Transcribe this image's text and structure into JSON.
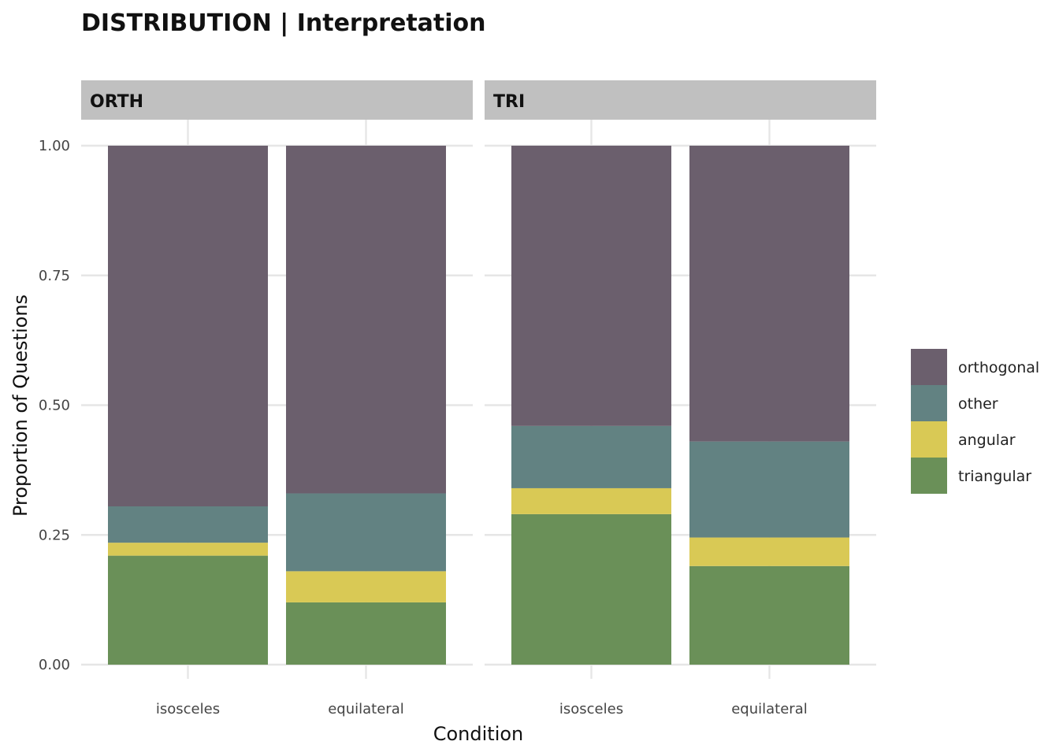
{
  "chart_data": {
    "type": "bar",
    "stacked": true,
    "title": "DISTRIBUTION | Interpretation",
    "xlabel": "Condition",
    "ylabel": "Proportion of Questions",
    "ylim": [
      0,
      1
    ],
    "yticks": [
      "0.00",
      "0.25",
      "0.50",
      "0.75",
      "1.00"
    ],
    "grid": true,
    "legend_position": "right",
    "categories": [
      "isosceles",
      "equilateral"
    ],
    "stack_order": [
      "triangular",
      "angular",
      "other",
      "orthogonal"
    ],
    "colors": {
      "orthogonal": "#6b5f6d",
      "other": "#628282",
      "angular": "#d9c955",
      "triangular": "#6a9058"
    },
    "legend": [
      "orthogonal",
      "other",
      "angular",
      "triangular"
    ],
    "facets": [
      {
        "name": "ORTH",
        "series": [
          {
            "name": "triangular",
            "values": [
              0.21,
              0.12
            ]
          },
          {
            "name": "angular",
            "values": [
              0.025,
              0.06
            ]
          },
          {
            "name": "other",
            "values": [
              0.07,
              0.15
            ]
          },
          {
            "name": "orthogonal",
            "values": [
              0.695,
              0.67
            ]
          }
        ]
      },
      {
        "name": "TRI",
        "series": [
          {
            "name": "triangular",
            "values": [
              0.29,
              0.19
            ]
          },
          {
            "name": "angular",
            "values": [
              0.05,
              0.055
            ]
          },
          {
            "name": "other",
            "values": [
              0.12,
              0.185
            ]
          },
          {
            "name": "orthogonal",
            "values": [
              0.54,
              0.57
            ]
          }
        ]
      }
    ]
  }
}
